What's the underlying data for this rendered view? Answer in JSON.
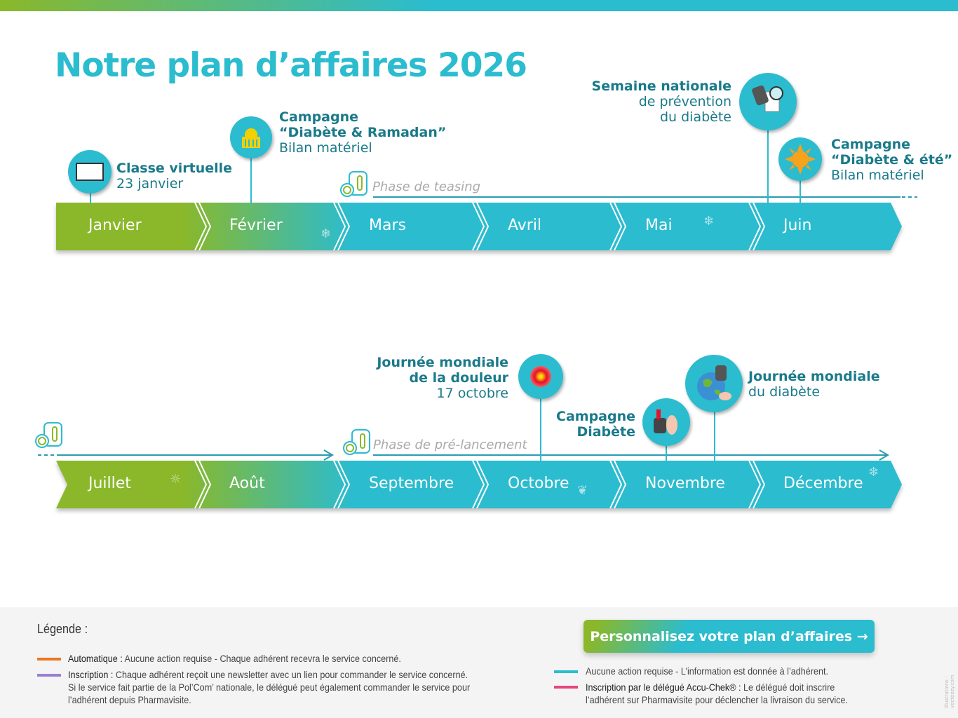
{
  "title": "Notre plan d’affaires 2026",
  "colors": {
    "green": "#8ab82a",
    "teal": "#2bbccf",
    "text_teal": "#1a7a8a",
    "orange": "#e87722",
    "purple": "#9b7fd4",
    "pink": "#e8457a"
  },
  "months_row1": [
    "Janvier",
    "Février",
    "Mars",
    "Avril",
    "Mai",
    "Juin"
  ],
  "months_row2": [
    "Juillet",
    "Août",
    "Septembre",
    "Octobre",
    "Novembre",
    "Décembre"
  ],
  "events": {
    "classe": {
      "title": "Classe virtuelle",
      "sub": "23 janvier",
      "icon": "video-conference-icon"
    },
    "ramadan": {
      "title1": "Campagne",
      "title2": "“Diabète & Ramadan”",
      "sub": "Bilan matériel",
      "icon": "mosque-icon"
    },
    "semaine": {
      "title": "Semaine nationale",
      "sub1": "de prévention",
      "sub2": "du diabète",
      "icon": "glucose-meter-magnifier-icon"
    },
    "ete": {
      "title1": "Campagne",
      "title2": "“Diabète & été”",
      "sub": "Bilan matériel",
      "icon": "sun-icon"
    },
    "douleur": {
      "title1": "Journée mondiale",
      "title2": "de la douleur",
      "sub": "17 octobre",
      "icon": "pain-target-icon"
    },
    "campagne_diabete": {
      "title1": "Campagne",
      "title2": "Diabète",
      "icon": "glucose-test-icon"
    },
    "mondiale_diabete": {
      "title": "Journée mondiale",
      "sub": "du diabète",
      "icon": "globe-hands-icon"
    }
  },
  "phases": {
    "teasing": "Phase de teasing",
    "prelancement": "Phase de pré-lancement"
  },
  "legend": {
    "heading": "Légende :",
    "items": [
      {
        "label": "Automatique :",
        "text": " Aucune action requise - Chaque adhérent recevra le service concerné."
      },
      {
        "label": "Inscription :",
        "text": " Chaque adhérent reçoit une newsletter avec un lien pour commander le service concerné.",
        "text2": "Si le service fait partie de la Pol’Com’ nationale, le délégué peut également commander le service pour",
        "text3": "l’adhérent depuis Pharmavisite."
      },
      {
        "text": "Aucune action requise - L’information est donnée à l’adhérent."
      },
      {
        "label": "Inscription par le délégué Accu-Chek® :",
        "text": " Le délégué doit inscrire",
        "text2": "l’adhérent sur Pharmavisite pour déclencher la livraison du service."
      }
    ]
  },
  "cta": {
    "label": "Personnalisez votre plan d’affaires",
    "arrow": "→"
  },
  "credit": "illustrations : vecteezy.com"
}
